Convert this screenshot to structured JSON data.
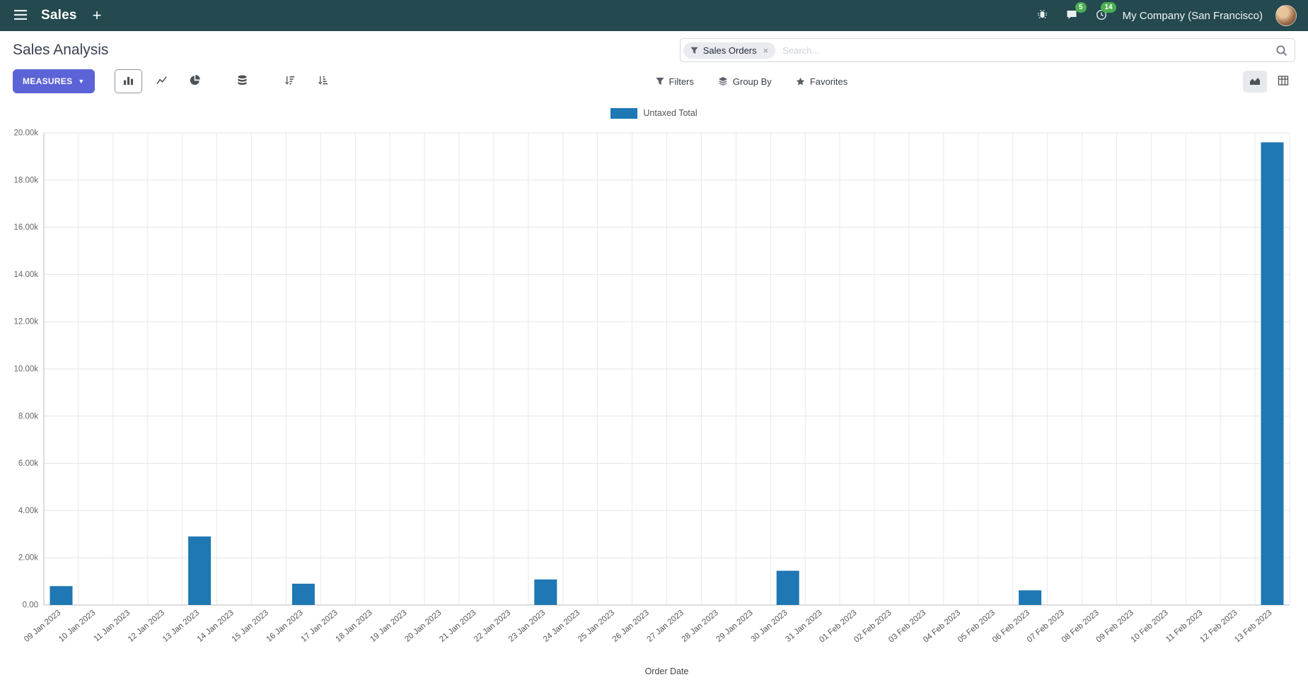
{
  "navbar": {
    "brand": "Sales",
    "plus": "+",
    "messages_badge": "5",
    "activities_badge": "14",
    "company": "My Company (San Francisco)"
  },
  "control_panel": {
    "title": "Sales Analysis",
    "search": {
      "facet_label": "Sales Orders",
      "facet_remove": "×",
      "placeholder": "Search..."
    },
    "measures_label": "MEASURES",
    "filters_label": "Filters",
    "group_by_label": "Group By",
    "favorites_label": "Favorites"
  },
  "chart_data": {
    "type": "bar",
    "title": "",
    "series_name": "Untaxed Total",
    "legend": [
      "Untaxed Total"
    ],
    "legend_position": "top",
    "grid": true,
    "xlabel": "Order Date",
    "ylabel": "",
    "ylim": [
      0,
      20000
    ],
    "y_ticks": [
      0,
      2000,
      4000,
      6000,
      8000,
      10000,
      12000,
      14000,
      16000,
      18000,
      20000
    ],
    "y_tick_labels": [
      "0.00",
      "2.00k",
      "4.00k",
      "6.00k",
      "8.00k",
      "10.00k",
      "12.00k",
      "14.00k",
      "16.00k",
      "18.00k",
      "20.00k"
    ],
    "bar_color": "#1f77b4",
    "categories": [
      "09 Jan 2023",
      "10 Jan 2023",
      "11 Jan 2023",
      "12 Jan 2023",
      "13 Jan 2023",
      "14 Jan 2023",
      "15 Jan 2023",
      "16 Jan 2023",
      "17 Jan 2023",
      "18 Jan 2023",
      "19 Jan 2023",
      "20 Jan 2023",
      "21 Jan 2023",
      "22 Jan 2023",
      "23 Jan 2023",
      "24 Jan 2023",
      "25 Jan 2023",
      "26 Jan 2023",
      "27 Jan 2023",
      "28 Jan 2023",
      "29 Jan 2023",
      "30 Jan 2023",
      "31 Jan 2023",
      "01 Feb 2023",
      "02 Feb 2023",
      "03 Feb 2023",
      "04 Feb 2023",
      "05 Feb 2023",
      "06 Feb 2023",
      "07 Feb 2023",
      "08 Feb 2023",
      "09 Feb 2023",
      "10 Feb 2023",
      "11 Feb 2023",
      "12 Feb 2023",
      "13 Feb 2023"
    ],
    "values": [
      800,
      0,
      0,
      0,
      2900,
      0,
      0,
      900,
      0,
      0,
      0,
      0,
      0,
      0,
      1080,
      0,
      0,
      0,
      0,
      0,
      0,
      1450,
      0,
      0,
      0,
      0,
      0,
      0,
      620,
      0,
      0,
      0,
      0,
      0,
      0,
      19600
    ]
  },
  "theme": {
    "navbar_bg": "#24494f",
    "primary": "#5b63d6",
    "bar": "#1f77b4",
    "badge": "#4caf50"
  }
}
